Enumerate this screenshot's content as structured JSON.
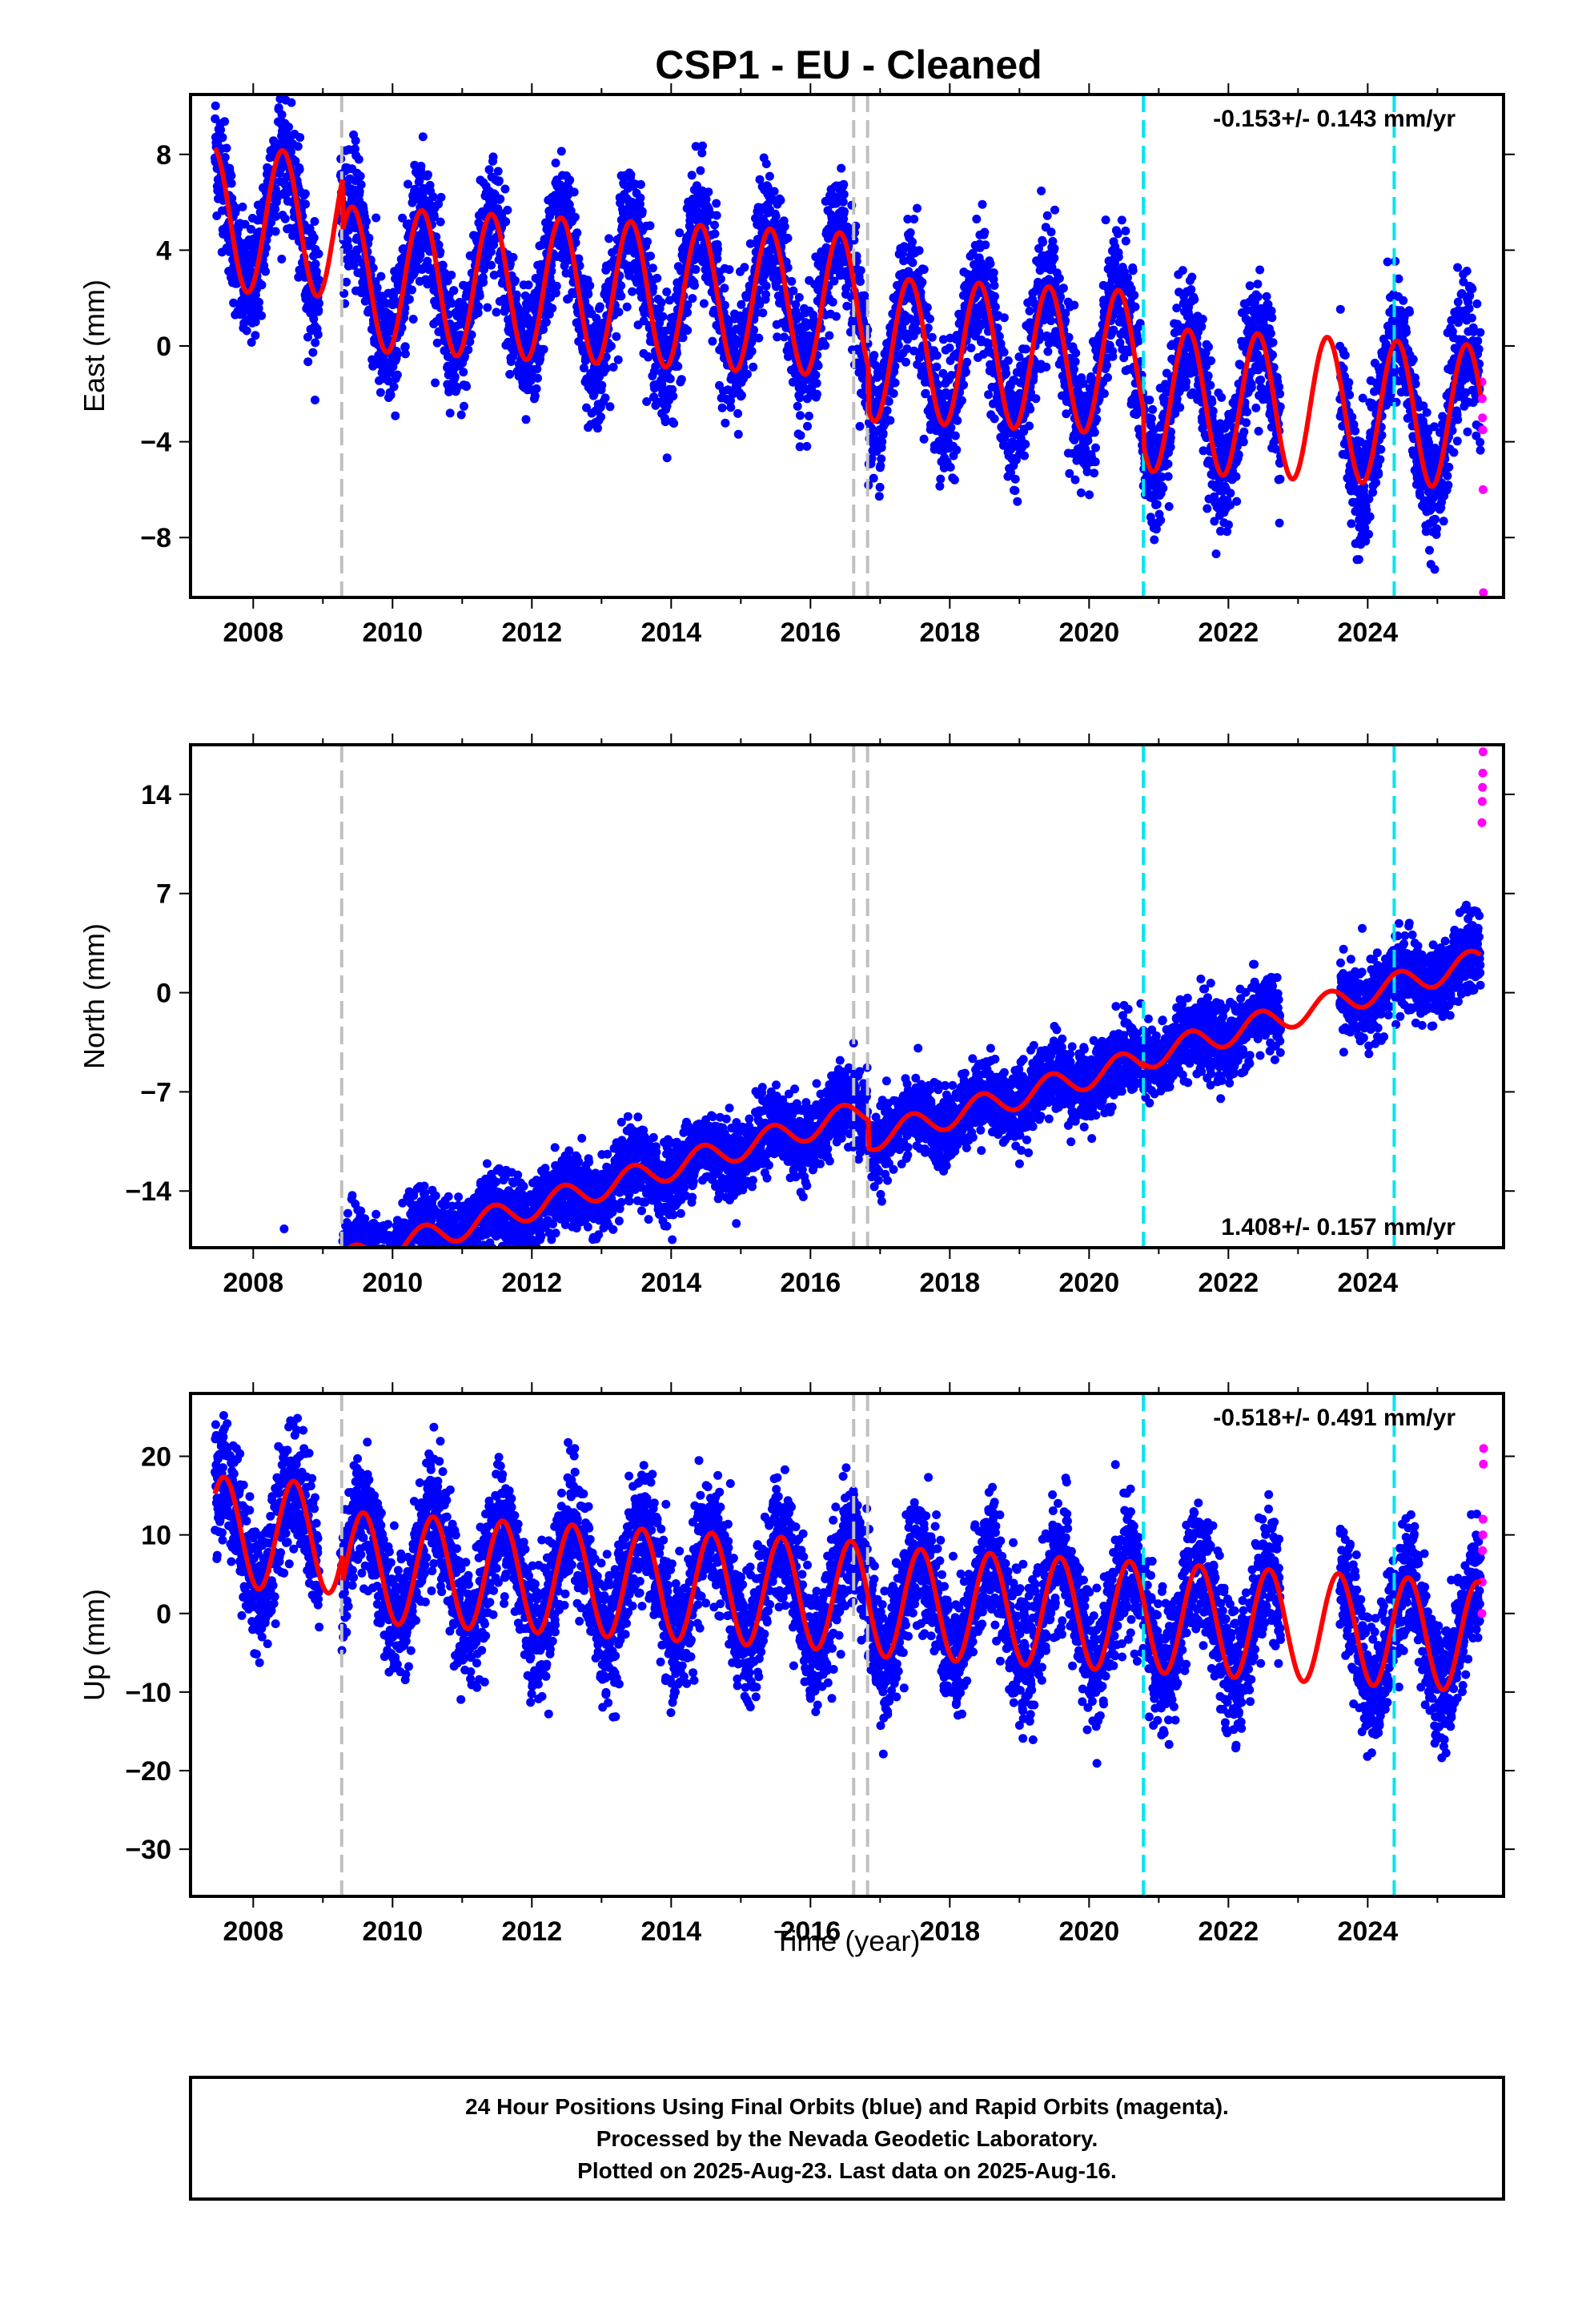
{
  "title": "CSP1  - EU - Cleaned",
  "xlabel": "Time (year)",
  "footer": {
    "line1": "24 Hour Positions Using Final Orbits (blue) and Rapid Orbits (magenta).",
    "line2": "Processed by the Nevada Geodetic Laboratory.",
    "line3": "Plotted on 2025-Aug-23. Last data on 2025-Aug-16."
  },
  "colors": {
    "final_orbits": "#0000ff",
    "rapid_orbits": "#ff00ff",
    "model": "#ff0000",
    "equipment_change": "#c0c0c0",
    "earthquake": "#00e5ee"
  },
  "chart_data": [
    {
      "type": "scatter",
      "panel": "east",
      "ylabel": "East (mm)",
      "rate_text": "-0.153+/- 0.143 mm/yr",
      "xlim": [
        2007.1,
        2025.95
      ],
      "ylim": [
        -10.5,
        10.5
      ],
      "xticks": [
        2008,
        2010,
        2012,
        2014,
        2016,
        2018,
        2020,
        2022,
        2024
      ],
      "yticks": [
        -8,
        -4,
        0,
        4,
        8
      ],
      "data_start": 2007.45,
      "data_end": 2025.62,
      "model": {
        "trend_mm_per_yr": -0.153,
        "annual_amp": 3.0,
        "annual_peak": 0.42,
        "offsets": [
          {
            "start": 2007.45,
            "level": 4.0
          },
          {
            "start": 2009.28,
            "level": 1.8
          },
          {
            "start": 2016.83,
            "level": 0.0
          },
          {
            "start": 2020.78,
            "level": -1.5
          }
        ]
      },
      "scatter_sigma": 1.3,
      "rapid_orbit_values": [
        -1.5,
        -2.2,
        -3.0,
        -3.5,
        -6.0,
        -10.3
      ],
      "gaps": [
        [
          2022.75,
          2023.6
        ]
      ],
      "equipment_changes": [
        2009.27,
        2016.62,
        2016.82
      ],
      "earthquakes": [
        2020.78,
        2024.38
      ]
    },
    {
      "type": "scatter",
      "panel": "north",
      "ylabel": "North (mm)",
      "rate_text": "1.408+/- 0.157 mm/yr",
      "xlim": [
        2007.1,
        2025.95
      ],
      "ylim": [
        -18,
        17.5
      ],
      "xticks": [
        2008,
        2010,
        2012,
        2014,
        2016,
        2018,
        2020,
        2022,
        2024
      ],
      "yticks": [
        -14,
        -7,
        0,
        7,
        14
      ],
      "data_start": 2007.45,
      "data_end": 2025.62,
      "model": {
        "trend_mm_per_yr": 1.408,
        "annual_amp": 0.9,
        "annual_peak": 0.45,
        "offsets": [
          {
            "start": 2007.45,
            "level": -12.5
          },
          {
            "start": 2009.28,
            "level": -9.5
          },
          {
            "start": 2016.83,
            "level": -11.5
          },
          {
            "start": 2020.78,
            "level": -11.3
          }
        ]
      },
      "scatter_sigma": 1.3,
      "rapid_orbit_values": [
        12.0,
        13.5,
        14.5,
        15.5,
        17.0
      ],
      "gaps": [
        [
          2022.75,
          2023.6
        ]
      ],
      "equipment_changes": [
        2009.27,
        2016.62,
        2016.82
      ],
      "earthquakes": [
        2020.78,
        2024.38
      ]
    },
    {
      "type": "scatter",
      "panel": "up",
      "ylabel": "Up (mm)",
      "rate_text": "-0.518+/- 0.491 mm/yr",
      "xlim": [
        2007.1,
        2025.95
      ],
      "ylim": [
        -36,
        28
      ],
      "xticks": [
        2008,
        2010,
        2012,
        2014,
        2016,
        2018,
        2020,
        2022,
        2024
      ],
      "yticks": [
        -30,
        -20,
        -10,
        0,
        10,
        20
      ],
      "data_start": 2007.45,
      "data_end": 2025.62,
      "model": {
        "trend_mm_per_yr": -0.518,
        "annual_amp": 7.0,
        "annual_peak": 0.58,
        "offsets": [
          {
            "start": 2007.45,
            "level": 6.0
          },
          {
            "start": 2009.28,
            "level": 2.5
          },
          {
            "start": 2016.83,
            "level": 2.0
          },
          {
            "start": 2020.78,
            "level": 2.0
          }
        ]
      },
      "scatter_sigma": 4.0,
      "rapid_orbit_values": [
        0,
        4,
        8,
        10,
        12,
        19,
        21
      ],
      "gaps": [
        [
          2022.75,
          2023.6
        ]
      ],
      "equipment_changes": [
        2009.27,
        2016.62,
        2016.82
      ],
      "earthquakes": [
        2020.78,
        2024.38
      ]
    }
  ]
}
